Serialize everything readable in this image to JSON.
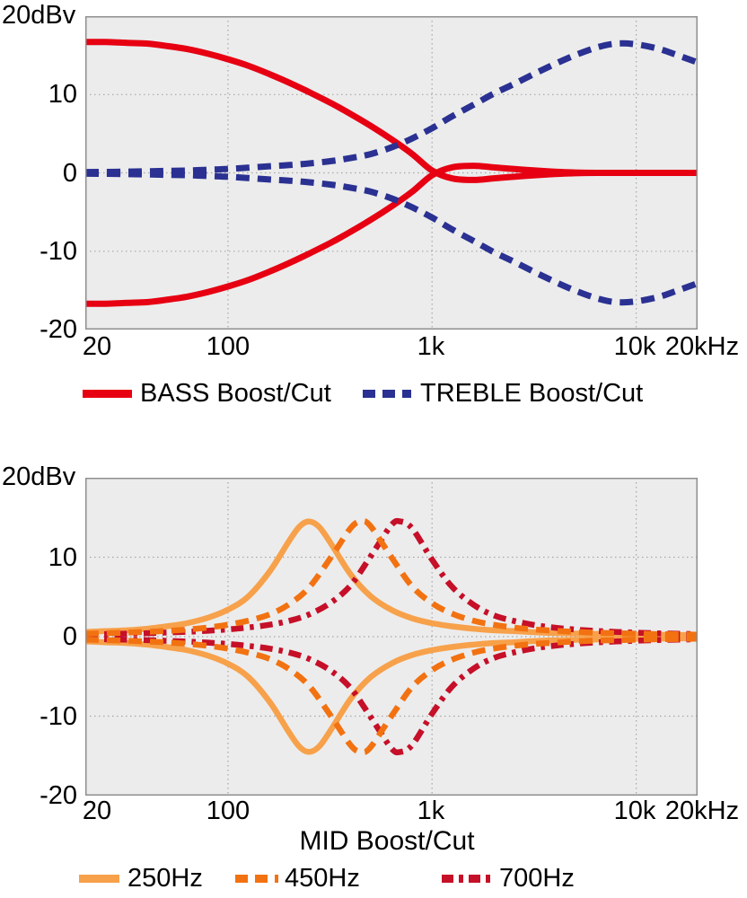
{
  "chart_data": [
    {
      "type": "line",
      "title": "",
      "xlabel": "",
      "note": "Bass/Treble shelving tone control response; each series depicts a boost curve and its mirrored cut curve (values_db negated).",
      "x_axis": {
        "scale": "log",
        "min": 20,
        "max": 20000,
        "unit": "Hz",
        "tick_values": [
          20,
          100,
          1000,
          10000,
          20000
        ],
        "tick_labels": [
          "20",
          "100",
          "1k",
          "10k",
          "20kHz"
        ]
      },
      "y_axis": {
        "min": -20,
        "max": 20,
        "unit": "dBv",
        "top_label": "20dBv",
        "tick_values": [
          10,
          0,
          -10,
          -20
        ],
        "tick_labels": [
          "10",
          "0",
          "-10",
          "-20"
        ]
      },
      "grid": {
        "style": "dotted",
        "color": "#a6a6a6",
        "v_values": [
          100,
          1000,
          10000
        ],
        "h_values": [
          10,
          0,
          -10
        ]
      },
      "plot_bg": "#ececec",
      "legend": {
        "position": "bottom",
        "entries": [
          "BASS Boost/Cut",
          "TREBLE Boost/Cut"
        ]
      },
      "draw_order": [
        0,
        1
      ],
      "series": [
        {
          "name": "BASS Boost/Cut",
          "color": "#e60012",
          "style": "solid",
          "mirrored": true,
          "points": [
            [
              20,
              16.7
            ],
            [
              25,
              16.7
            ],
            [
              32,
              16.6
            ],
            [
              40,
              16.5
            ],
            [
              50,
              16.2
            ],
            [
              63,
              15.8
            ],
            [
              80,
              15.2
            ],
            [
              100,
              14.5
            ],
            [
              125,
              13.7
            ],
            [
              160,
              12.6
            ],
            [
              200,
              11.5
            ],
            [
              250,
              10.3
            ],
            [
              320,
              8.9
            ],
            [
              400,
              7.5
            ],
            [
              500,
              6.0
            ],
            [
              640,
              4.2
            ],
            [
              800,
              2.4
            ],
            [
              1000,
              0.3
            ],
            [
              1250,
              -0.7
            ],
            [
              1600,
              -0.9
            ],
            [
              2000,
              -0.7
            ],
            [
              2500,
              -0.5
            ],
            [
              3200,
              -0.3
            ],
            [
              4000,
              -0.15
            ],
            [
              5000,
              -0.05
            ],
            [
              6400,
              0
            ],
            [
              8000,
              0
            ],
            [
              10000,
              0
            ],
            [
              13000,
              0
            ],
            [
              16000,
              0
            ],
            [
              20000,
              0
            ]
          ]
        },
        {
          "name": "TREBLE Boost/Cut",
          "color": "#2a3192",
          "style": "dashed",
          "mirrored": true,
          "points": [
            [
              20,
              0.1
            ],
            [
              25,
              0.12
            ],
            [
              32,
              0.15
            ],
            [
              40,
              0.2
            ],
            [
              50,
              0.25
            ],
            [
              63,
              0.3
            ],
            [
              80,
              0.4
            ],
            [
              100,
              0.5
            ],
            [
              125,
              0.65
            ],
            [
              160,
              0.85
            ],
            [
              200,
              1.0
            ],
            [
              250,
              1.2
            ],
            [
              320,
              1.5
            ],
            [
              400,
              1.9
            ],
            [
              500,
              2.4
            ],
            [
              640,
              3.3
            ],
            [
              800,
              4.4
            ],
            [
              1000,
              5.7
            ],
            [
              1250,
              7.2
            ],
            [
              1600,
              8.7
            ],
            [
              2000,
              10.1
            ],
            [
              2500,
              11.3
            ],
            [
              3200,
              12.7
            ],
            [
              4000,
              13.9
            ],
            [
              5000,
              15.0
            ],
            [
              6400,
              16.0
            ],
            [
              8000,
              16.5
            ],
            [
              10000,
              16.4
            ],
            [
              13000,
              15.8
            ],
            [
              16000,
              15.0
            ],
            [
              20000,
              14.1
            ]
          ]
        }
      ]
    },
    {
      "type": "line",
      "title": "",
      "xlabel": "MID Boost/Cut",
      "note": "Mid peaking EQ response at three center frequencies; each series depicts a boost curve and its mirrored cut curve (values_db negated).",
      "x_axis": {
        "scale": "log",
        "min": 20,
        "max": 20000,
        "unit": "Hz",
        "tick_values": [
          20,
          100,
          1000,
          10000,
          20000
        ],
        "tick_labels": [
          "20",
          "100",
          "1k",
          "10k",
          "20kHz"
        ]
      },
      "y_axis": {
        "min": -20,
        "max": 20,
        "unit": "dBv",
        "top_label": "20dBv",
        "tick_values": [
          10,
          0,
          -10,
          -20
        ],
        "tick_labels": [
          "10",
          "0",
          "-10",
          "-20"
        ]
      },
      "grid": {
        "style": "dotted",
        "color": "#a6a6a6",
        "v_values": [
          100,
          1000,
          10000
        ],
        "h_values": [
          10,
          0,
          -10
        ]
      },
      "plot_bg": "#ececec",
      "legend": {
        "position": "bottom",
        "entries": [
          "250Hz",
          "450Hz",
          "700Hz"
        ]
      },
      "draw_order": [
        0,
        2,
        1
      ],
      "series": [
        {
          "name": "250Hz",
          "color": "#f7a14b",
          "style": "solid",
          "mirrored": true,
          "peak_hz": 250,
          "peak_db": 14.5,
          "points": [
            [
              20,
              0.6
            ],
            [
              25,
              0.7
            ],
            [
              32,
              0.8
            ],
            [
              40,
              1.0
            ],
            [
              50,
              1.3
            ],
            [
              63,
              1.7
            ],
            [
              80,
              2.4
            ],
            [
              100,
              3.4
            ],
            [
              125,
              5.0
            ],
            [
              160,
              8.2
            ],
            [
              200,
              12.1
            ],
            [
              225,
              13.9
            ],
            [
              250,
              14.5
            ],
            [
              280,
              13.8
            ],
            [
              320,
              11.7
            ],
            [
              400,
              7.8
            ],
            [
              500,
              5.1
            ],
            [
              640,
              3.3
            ],
            [
              800,
              2.3
            ],
            [
              1000,
              1.7
            ],
            [
              1250,
              1.3
            ],
            [
              1600,
              1.0
            ],
            [
              2000,
              0.8
            ],
            [
              2500,
              0.7
            ],
            [
              3200,
              0.55
            ],
            [
              4000,
              0.45
            ],
            [
              5000,
              0.4
            ],
            [
              6400,
              0.35
            ],
            [
              8000,
              0.3
            ],
            [
              10000,
              0.27
            ],
            [
              12500,
              0.24
            ],
            [
              16000,
              0.21
            ],
            [
              20000,
              0.19
            ]
          ]
        },
        {
          "name": "450Hz",
          "color": "#f27211",
          "style": "dashed",
          "mirrored": true,
          "peak_hz": 450,
          "peak_db": 14.5,
          "points": [
            [
              20,
              0.37
            ],
            [
              25,
              0.43
            ],
            [
              32,
              0.51
            ],
            [
              40,
              0.61
            ],
            [
              50,
              0.73
            ],
            [
              63,
              0.9
            ],
            [
              80,
              1.15
            ],
            [
              100,
              1.5
            ],
            [
              125,
              2.0
            ],
            [
              160,
              2.8
            ],
            [
              200,
              4.1
            ],
            [
              250,
              6.2
            ],
            [
              320,
              10.0
            ],
            [
              400,
              13.7
            ],
            [
              450,
              14.5
            ],
            [
              500,
              13.9
            ],
            [
              640,
              9.8
            ],
            [
              800,
              6.3
            ],
            [
              1000,
              4.2
            ],
            [
              1250,
              2.9
            ],
            [
              1600,
              2.0
            ],
            [
              2000,
              1.5
            ],
            [
              2500,
              1.15
            ],
            [
              3200,
              0.9
            ],
            [
              4000,
              0.75
            ],
            [
              5000,
              0.6
            ],
            [
              6400,
              0.5
            ],
            [
              8000,
              0.44
            ],
            [
              10000,
              0.38
            ],
            [
              12500,
              0.33
            ],
            [
              16000,
              0.29
            ],
            [
              20000,
              0.25
            ]
          ]
        },
        {
          "name": "700Hz",
          "color": "#c60f28",
          "style": "dashdot",
          "mirrored": true,
          "peak_hz": 700,
          "peak_db": 14.5,
          "points": [
            [
              20,
              0.29
            ],
            [
              25,
              0.33
            ],
            [
              32,
              0.38
            ],
            [
              40,
              0.44
            ],
            [
              50,
              0.52
            ],
            [
              63,
              0.61
            ],
            [
              80,
              0.75
            ],
            [
              100,
              0.92
            ],
            [
              125,
              1.15
            ],
            [
              160,
              1.5
            ],
            [
              200,
              2.0
            ],
            [
              250,
              2.8
            ],
            [
              320,
              4.3
            ],
            [
              400,
              6.5
            ],
            [
              500,
              10.1
            ],
            [
              630,
              14.0
            ],
            [
              700,
              14.5
            ],
            [
              800,
              13.6
            ],
            [
              1000,
              9.7
            ],
            [
              1250,
              6.3
            ],
            [
              1600,
              4.0
            ],
            [
              2000,
              2.7
            ],
            [
              2500,
              2.0
            ],
            [
              3200,
              1.45
            ],
            [
              4000,
              1.13
            ],
            [
              5000,
              0.9
            ],
            [
              6400,
              0.72
            ],
            [
              8000,
              0.6
            ],
            [
              10000,
              0.51
            ],
            [
              12500,
              0.43
            ],
            [
              16000,
              0.37
            ],
            [
              20000,
              0.32
            ]
          ]
        }
      ]
    }
  ]
}
